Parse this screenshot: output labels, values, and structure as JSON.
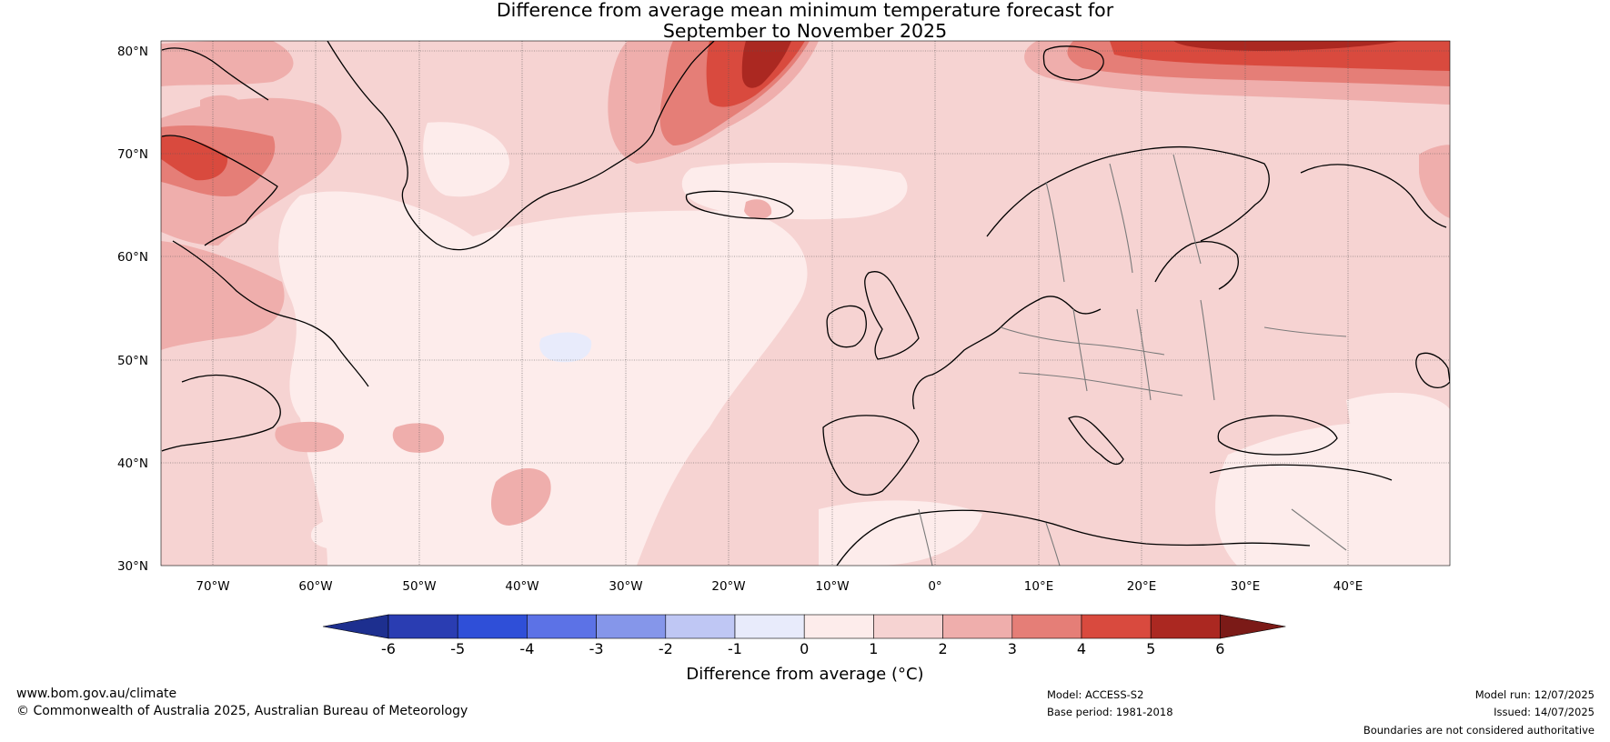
{
  "title": {
    "line1": "Difference from average mean minimum temperature forecast for",
    "line2": "September to November 2025"
  },
  "map": {
    "lat_ticks": [
      "80°N",
      "70°N",
      "60°N",
      "50°N",
      "40°N",
      "30°N"
    ],
    "lon_ticks": [
      "70°W",
      "60°W",
      "50°W",
      "40°W",
      "30°W",
      "20°W",
      "10°W",
      "0°",
      "10°E",
      "20°E",
      "30°E",
      "40°E"
    ],
    "lat_range": [
      30,
      81
    ],
    "lon_range": [
      -75,
      50
    ]
  },
  "colorbar": {
    "ticks": [
      "-6",
      "-5",
      "-4",
      "-3",
      "-2",
      "-1",
      "0",
      "1",
      "2",
      "3",
      "4",
      "5",
      "6"
    ],
    "colors": [
      "#1d2f8f",
      "#2a3db2",
      "#2f4fd8",
      "#5c72e6",
      "#8596ea",
      "#bfc7f4",
      "#e8ebfb",
      "#fdeceb",
      "#f6d3d2",
      "#efaeac",
      "#e57e77",
      "#d94a3e",
      "#ab2821",
      "#7b1a17"
    ],
    "label": "Difference from average (°C)"
  },
  "footer": {
    "website": "www.bom.gov.au/climate",
    "copyright": "© Commonwealth of Australia 2025, Australian Bureau of Meteorology",
    "model": "Model: ACCESS-S2",
    "base_period": "Base period: 1981-2018",
    "model_run": "Model run: 12/07/2025",
    "issued": "Issued: 14/07/2025",
    "disclaimer": "Boundaries are not considered authoritative"
  }
}
